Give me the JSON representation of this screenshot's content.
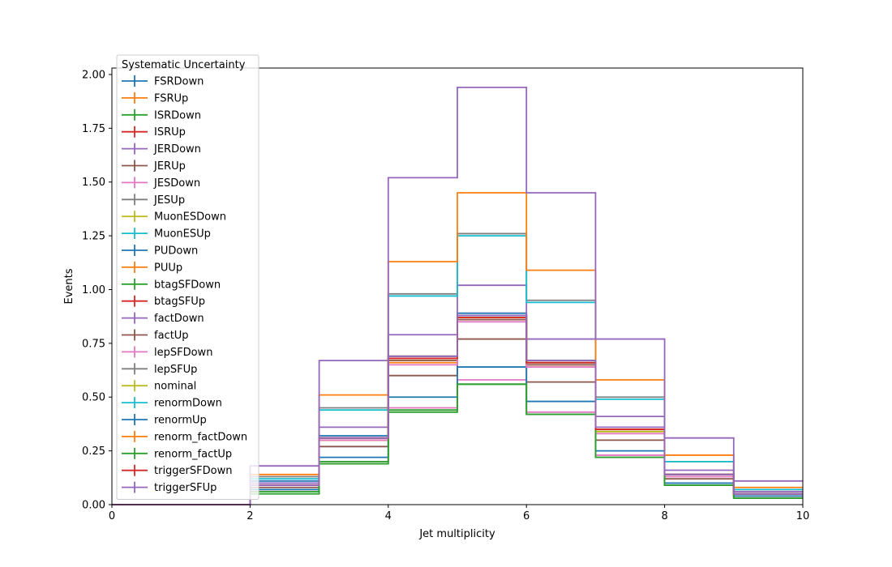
{
  "chart_data": {
    "type": "line",
    "style": "step-histogram",
    "xlabel": "Jet multiplicity",
    "ylabel": "Events",
    "xlim": [
      0,
      10
    ],
    "ylim": [
      0,
      2.03
    ],
    "x_ticks": [
      "0",
      "2",
      "4",
      "6",
      "8",
      "10"
    ],
    "y_ticks": [
      "0.00",
      "0.25",
      "0.50",
      "0.75",
      "1.00",
      "1.25",
      "1.50",
      "1.75",
      "2.00"
    ],
    "grid": false,
    "legend": {
      "title": "Systematic Uncertainty",
      "placement": "upper-left"
    },
    "bin_edges": [
      0,
      1,
      2,
      3,
      4,
      5,
      6,
      7,
      8,
      9,
      10
    ],
    "series": [
      {
        "name": "FSRDown",
        "color": "#1f77b4",
        "values": [
          0,
          0,
          0.11,
          0.32,
          0.68,
          0.89,
          0.67,
          0.35,
          0.14,
          0.05
        ]
      },
      {
        "name": "FSRUp",
        "color": "#ff7f0e",
        "values": [
          0,
          0,
          0.09,
          0.3,
          0.66,
          0.87,
          0.65,
          0.34,
          0.14,
          0.05
        ]
      },
      {
        "name": "ISRDown",
        "color": "#2ca02c",
        "values": [
          0,
          0,
          0.09,
          0.31,
          0.69,
          0.88,
          0.67,
          0.35,
          0.14,
          0.05
        ]
      },
      {
        "name": "ISRUp",
        "color": "#d62728",
        "values": [
          0,
          0,
          0.09,
          0.3,
          0.68,
          0.87,
          0.66,
          0.35,
          0.14,
          0.05
        ]
      },
      {
        "name": "JERDown",
        "color": "#9467bd",
        "values": [
          0,
          0,
          0.1,
          0.36,
          0.79,
          1.02,
          0.77,
          0.41,
          0.16,
          0.06
        ]
      },
      {
        "name": "JERUp",
        "color": "#8c564b",
        "values": [
          0,
          0,
          0.08,
          0.27,
          0.6,
          0.77,
          0.57,
          0.3,
          0.12,
          0.04
        ]
      },
      {
        "name": "JESDown",
        "color": "#e377c2",
        "values": [
          0,
          0,
          0.07,
          0.2,
          0.45,
          0.58,
          0.43,
          0.23,
          0.09,
          0.03
        ]
      },
      {
        "name": "JESUp",
        "color": "#7f7f7f",
        "values": [
          0,
          0,
          0.13,
          0.45,
          0.98,
          1.26,
          0.95,
          0.5,
          0.2,
          0.07
        ]
      },
      {
        "name": "MuonESDown",
        "color": "#bcbd22",
        "values": [
          0,
          0,
          0.09,
          0.3,
          0.67,
          0.86,
          0.65,
          0.34,
          0.14,
          0.05
        ]
      },
      {
        "name": "MuonESUp",
        "color": "#17becf",
        "values": [
          0,
          0,
          0.12,
          0.44,
          0.97,
          1.25,
          0.94,
          0.49,
          0.2,
          0.07
        ]
      },
      {
        "name": "PUDown",
        "color": "#1f77b4",
        "values": [
          0,
          0,
          0.07,
          0.22,
          0.5,
          0.64,
          0.48,
          0.25,
          0.1,
          0.04
        ]
      },
      {
        "name": "PUUp",
        "color": "#ff7f0e",
        "values": [
          0,
          0,
          0.14,
          0.51,
          1.13,
          1.45,
          1.09,
          0.58,
          0.23,
          0.08
        ]
      },
      {
        "name": "btagSFDown",
        "color": "#2ca02c",
        "values": [
          0,
          0,
          0.06,
          0.2,
          0.44,
          0.56,
          0.42,
          0.22,
          0.09,
          0.03
        ]
      },
      {
        "name": "btagSFUp",
        "color": "#d62728",
        "values": [
          0,
          0,
          0.09,
          0.31,
          0.68,
          0.88,
          0.66,
          0.35,
          0.14,
          0.05
        ]
      },
      {
        "name": "factDown",
        "color": "#9467bd",
        "values": [
          0,
          0,
          0.18,
          0.67,
          1.52,
          1.94,
          1.45,
          0.77,
          0.31,
          0.11
        ]
      },
      {
        "name": "factUp",
        "color": "#8c564b",
        "values": [
          0,
          0,
          0.09,
          0.31,
          0.67,
          0.86,
          0.65,
          0.34,
          0.14,
          0.05
        ]
      },
      {
        "name": "lepSFDown",
        "color": "#e377c2",
        "values": [
          0,
          0,
          0.09,
          0.3,
          0.65,
          0.85,
          0.64,
          0.33,
          0.13,
          0.05
        ]
      },
      {
        "name": "lepSFUp",
        "color": "#7f7f7f",
        "values": [
          0,
          0,
          0.09,
          0.31,
          0.69,
          0.88,
          0.67,
          0.35,
          0.14,
          0.05
        ]
      },
      {
        "name": "nominal",
        "color": "#bcbd22",
        "values": [
          0,
          0,
          0.09,
          0.31,
          0.68,
          0.87,
          0.66,
          0.34,
          0.14,
          0.05
        ]
      },
      {
        "name": "renormDown",
        "color": "#17becf",
        "values": [
          0,
          0,
          0.09,
          0.31,
          0.68,
          0.88,
          0.66,
          0.35,
          0.14,
          0.05
        ]
      },
      {
        "name": "renormUp",
        "color": "#1f77b4",
        "values": [
          0,
          0,
          0.09,
          0.31,
          0.68,
          0.88,
          0.66,
          0.35,
          0.14,
          0.05
        ]
      },
      {
        "name": "renorm_factDown",
        "color": "#ff7f0e",
        "values": [
          0,
          0,
          0.09,
          0.31,
          0.68,
          0.87,
          0.66,
          0.35,
          0.14,
          0.05
        ]
      },
      {
        "name": "renorm_factUp",
        "color": "#2ca02c",
        "values": [
          0,
          0,
          0.05,
          0.19,
          0.43,
          0.56,
          0.42,
          0.22,
          0.09,
          0.03
        ]
      },
      {
        "name": "triggerSFDown",
        "color": "#d62728",
        "values": [
          0,
          0,
          0.09,
          0.31,
          0.68,
          0.87,
          0.66,
          0.35,
          0.14,
          0.05
        ]
      },
      {
        "name": "triggerSFUp",
        "color": "#9467bd",
        "values": [
          0,
          0,
          0.09,
          0.31,
          0.69,
          0.88,
          0.67,
          0.36,
          0.14,
          0.05
        ]
      }
    ]
  }
}
